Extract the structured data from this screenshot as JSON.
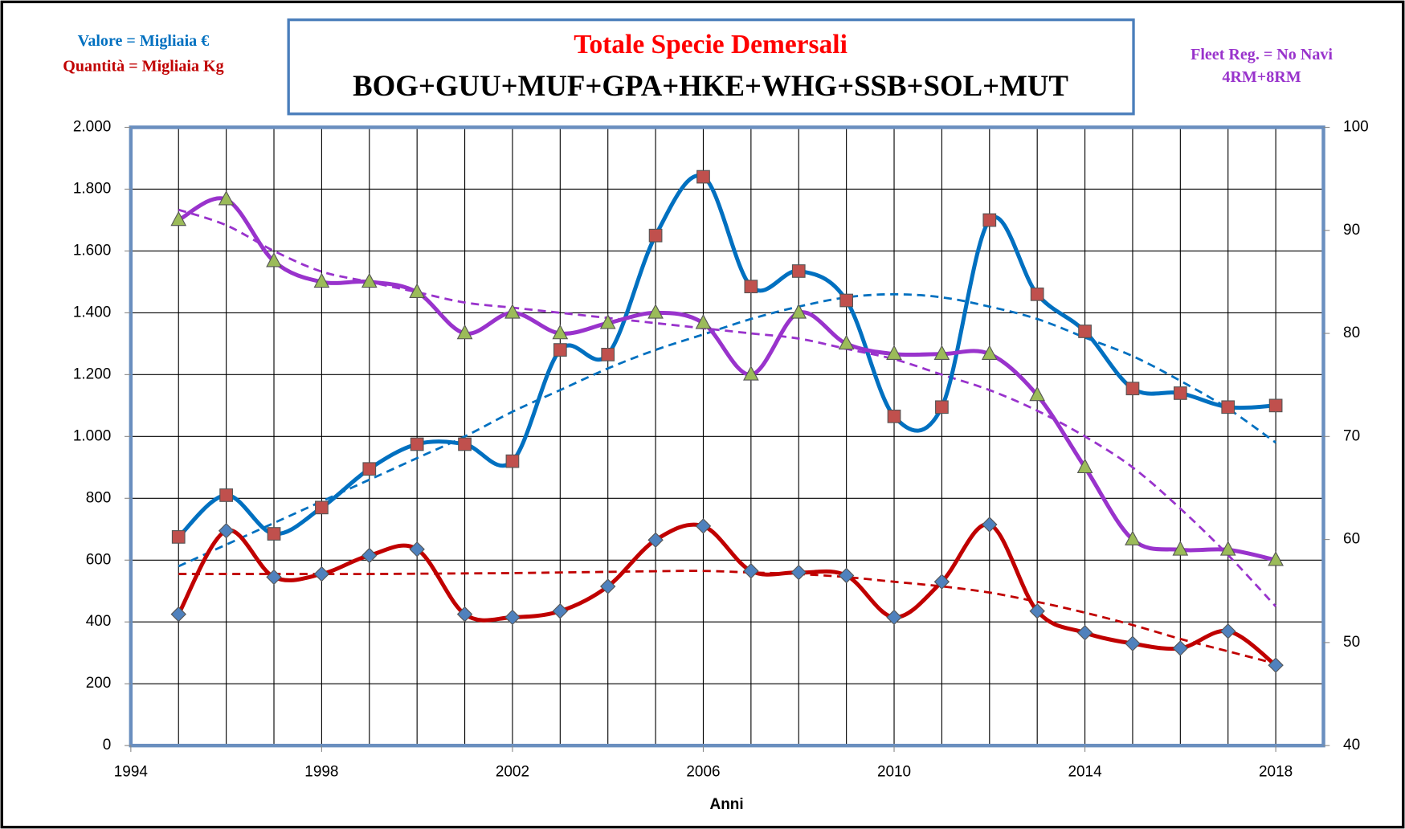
{
  "chart_data": {
    "type": "line",
    "title": "Totale Specie Demersali",
    "subtitle": "BOG+GUU+MUF+GPA+HKE+WHG+SSB+SOL+MUT",
    "annotations": [
      "Valore = Migliaia €",
      "Quantità = Migliaia Kg",
      "Fleet Reg. = No Navi",
      "4RM+8RM"
    ],
    "x_label": "Anni",
    "x": [
      1995,
      1996,
      1997,
      1998,
      1999,
      2000,
      2001,
      2002,
      2003,
      2004,
      2005,
      2006,
      2007,
      2008,
      2009,
      2010,
      2011,
      2012,
      2013,
      2014,
      2015,
      2016,
      2017,
      2018
    ],
    "xlim": [
      1994,
      2019
    ],
    "xticks": [
      1994,
      1998,
      2002,
      2006,
      2010,
      2014,
      2018
    ],
    "ylim": [
      0,
      2000
    ],
    "yticks": [
      0,
      200,
      400,
      600,
      800,
      {
        "value": 1000,
        "label": "1.000"
      },
      {
        "value": 1200,
        "label": "1.200"
      },
      {
        "value": 1400,
        "label": "1.400"
      },
      {
        "value": 1600,
        "label": "1.600"
      },
      {
        "value": 1800,
        "label": "1.800"
      },
      {
        "value": 2000,
        "label": "2.000"
      }
    ],
    "y2lim": [
      40,
      100
    ],
    "y2ticks": [
      40,
      50,
      60,
      70,
      80,
      90,
      100
    ],
    "grid": true,
    "series": [
      {
        "color": "#0070c0",
        "marker": "square",
        "marker_color": "#c0504d",
        "values": [
          675,
          810,
          685,
          770,
          895,
          975,
          975,
          920,
          1280,
          1265,
          1650,
          1840,
          1485,
          1535,
          1440,
          1065,
          1095,
          1700,
          1460,
          1340,
          1155,
          1140,
          1095,
          1100
        ]
      },
      {
        "color": "#c00000",
        "marker": "diamond",
        "marker_color": "#4f81bd",
        "values": [
          425,
          695,
          545,
          555,
          615,
          635,
          425,
          415,
          435,
          515,
          665,
          710,
          565,
          560,
          550,
          415,
          530,
          715,
          435,
          365,
          330,
          315,
          370,
          260
        ]
      },
      {
        "color": "#9933cc",
        "marker": "triangle",
        "marker_color": "#9bbb59",
        "axis": "y2",
        "values": [
          91,
          93,
          87,
          85,
          85,
          84,
          80,
          82,
          80,
          81,
          82,
          81,
          76,
          82,
          79,
          78,
          78,
          78,
          74,
          67,
          60,
          59,
          59,
          58
        ]
      }
    ],
    "trendlines": [
      {
        "color": "#0070c0",
        "values": [
          580,
          650,
          720,
          790,
          860,
          930,
          1000,
          1080,
          1150,
          1220,
          1280,
          1330,
          1380,
          1420,
          1450,
          1460,
          1450,
          1420,
          1380,
          1320,
          1260,
          1180,
          1090,
          980
        ]
      },
      {
        "color": "#c00000",
        "values": [
          555,
          555,
          555,
          555,
          555,
          556,
          557,
          558,
          560,
          562,
          564,
          565,
          560,
          555,
          545,
          530,
          515,
          495,
          465,
          430,
          390,
          345,
          305,
          265
        ]
      },
      {
        "color": "#9933cc",
        "axis": "y2",
        "values": [
          92,
          90.5,
          88,
          86,
          85,
          84,
          83,
          82.5,
          82,
          81.5,
          81,
          80.5,
          80,
          79.5,
          78.5,
          77.5,
          76,
          74.5,
          72.5,
          70,
          67,
          63,
          58.5,
          53.5
        ]
      }
    ]
  }
}
